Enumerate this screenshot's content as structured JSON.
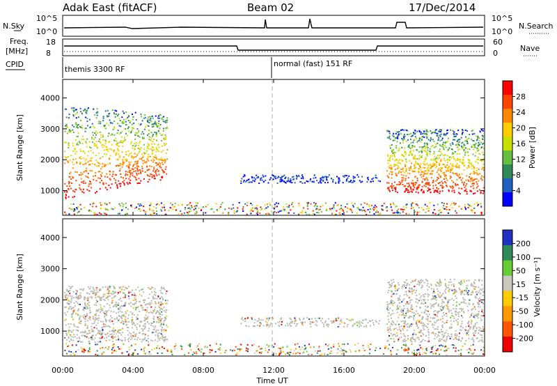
{
  "header": {
    "station": "Adak East (fitACF)",
    "beam": "Beam 02",
    "date": "17/Dec/2014"
  },
  "panels": {
    "nsky": {
      "label": "N.Sky",
      "right_label": "N.Search",
      "y_ticks": [
        "10^5",
        "10^0"
      ]
    },
    "freq": {
      "label_line1": "Freq.",
      "label_line2": "[MHz]",
      "left_ticks": [
        "18",
        "8"
      ],
      "right_label": "Nave",
      "right_ticks": [
        "60",
        "0"
      ]
    },
    "cpid": {
      "label": "CPID",
      "segments": [
        "themis 3300 RF",
        "normal (fast) 151 RF"
      ]
    }
  },
  "chart_data": [
    {
      "type": "heatmap",
      "name": "power",
      "ylabel": "Slant Range [km]",
      "y_ticks": [
        "4000",
        "3000",
        "2000",
        "1000"
      ],
      "ylim": [
        200,
        4600
      ],
      "colorbar": {
        "label": "Power [dB]",
        "ticks": [
          "28",
          "24",
          "20",
          "16",
          "12",
          "8",
          "4"
        ],
        "colors": [
          "#ff0000",
          "#ff4400",
          "#ff8800",
          "#ffcc00",
          "#c8e000",
          "#66c040",
          "#2e8b57",
          "#2060c0",
          "#0000ff"
        ]
      }
    },
    {
      "type": "heatmap",
      "name": "velocity",
      "ylabel": "Slant Range [km]",
      "y_ticks": [
        "4000",
        "3000",
        "2000",
        "1000"
      ],
      "ylim": [
        200,
        4600
      ],
      "colorbar": {
        "label": "Velocity [m s⁻¹]",
        "ticks": [
          "200",
          "100",
          "50",
          "15",
          "-15",
          "-50",
          "-100",
          "-200"
        ],
        "colors": [
          "#2030c0",
          "#2e8b57",
          "#66cc33",
          "#c8c8c0",
          "#ffcc00",
          "#ff9900",
          "#ff5500",
          "#ee0000"
        ]
      }
    }
  ],
  "xaxis": {
    "label": "Time UT",
    "ticks": [
      "00:00",
      "04:00",
      "08:00",
      "12:00",
      "16:00",
      "20:00",
      "00:00"
    ]
  },
  "colors": {
    "ground_scatter": "#b8b8b0",
    "axes": "#000000",
    "noon_line": "#999999"
  }
}
